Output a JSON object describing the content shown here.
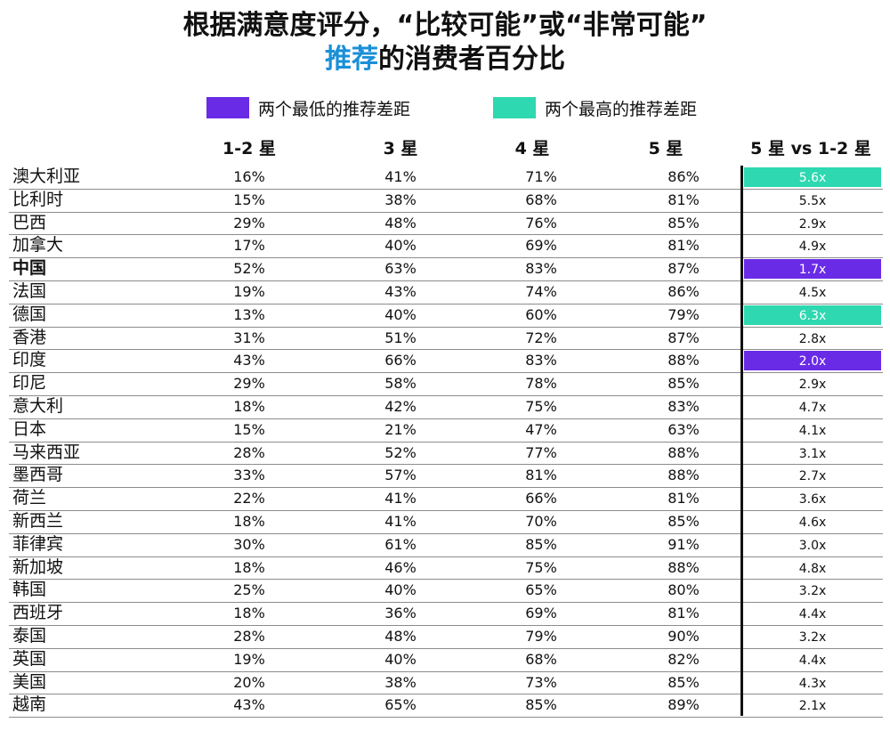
{
  "title_line1": "根据满意度评分，“比较可能”或“非常可能”",
  "title_line2_highlight": "推荐",
  "title_line2_rest": "的消费者百分比",
  "legend": {
    "low_label": "两个最低的推荐差距",
    "high_label": "两个最高的推荐差距",
    "low_color": "#6a2be6",
    "high_color": "#2ed8b0"
  },
  "headers": [
    "1-2 星",
    "3 星",
    "4  星",
    "5 星",
    "5 星 vs 1-2 星"
  ],
  "chart_data": {
    "type": "table",
    "columns": [
      "1-2 星",
      "3 星",
      "4  星",
      "5 星",
      "5 星 vs 1-2 星"
    ],
    "rows": [
      {
        "country": "澳大利亚",
        "values": [
          "16%",
          "41%",
          "71%",
          "86%"
        ],
        "ratio": "5.6x",
        "highlight": "high"
      },
      {
        "country": "比利时",
        "values": [
          "15%",
          "38%",
          "68%",
          "81%"
        ],
        "ratio": "5.5x",
        "highlight": ""
      },
      {
        "country": "巴西",
        "values": [
          "29%",
          "48%",
          "76%",
          "85%"
        ],
        "ratio": "2.9x",
        "highlight": ""
      },
      {
        "country": "加拿大",
        "values": [
          "17%",
          "40%",
          "69%",
          "81%"
        ],
        "ratio": "4.9x",
        "highlight": ""
      },
      {
        "country": "中国",
        "values": [
          "52%",
          "63%",
          "83%",
          "87%"
        ],
        "ratio": "1.7x",
        "highlight": "low",
        "bold": true
      },
      {
        "country": "法国",
        "values": [
          "19%",
          "43%",
          "74%",
          "86%"
        ],
        "ratio": "4.5x",
        "highlight": ""
      },
      {
        "country": "德国",
        "values": [
          "13%",
          "40%",
          "60%",
          "79%"
        ],
        "ratio": "6.3x",
        "highlight": "high"
      },
      {
        "country": "香港",
        "values": [
          "31%",
          "51%",
          "72%",
          "87%"
        ],
        "ratio": "2.8x",
        "highlight": ""
      },
      {
        "country": "印度",
        "values": [
          "43%",
          "66%",
          "83%",
          "88%"
        ],
        "ratio": "2.0x",
        "highlight": "low"
      },
      {
        "country": "印尼",
        "values": [
          "29%",
          "58%",
          "78%",
          "85%"
        ],
        "ratio": "2.9x",
        "highlight": ""
      },
      {
        "country": "意大利",
        "values": [
          "18%",
          "42%",
          "75%",
          "83%"
        ],
        "ratio": "4.7x",
        "highlight": ""
      },
      {
        "country": "日本",
        "values": [
          "15%",
          "21%",
          "47%",
          "63%"
        ],
        "ratio": "4.1x",
        "highlight": ""
      },
      {
        "country": "马来西亚",
        "values": [
          "28%",
          "52%",
          "77%",
          "88%"
        ],
        "ratio": "3.1x",
        "highlight": ""
      },
      {
        "country": "墨西哥",
        "values": [
          "33%",
          "57%",
          "81%",
          "88%"
        ],
        "ratio": "2.7x",
        "highlight": ""
      },
      {
        "country": "荷兰",
        "values": [
          "22%",
          "41%",
          "66%",
          "81%"
        ],
        "ratio": "3.6x",
        "highlight": ""
      },
      {
        "country": "新西兰",
        "values": [
          "18%",
          "41%",
          "70%",
          "85%"
        ],
        "ratio": "4.6x",
        "highlight": ""
      },
      {
        "country": "菲律宾",
        "values": [
          "30%",
          "61%",
          "85%",
          "91%"
        ],
        "ratio": "3.0x",
        "highlight": ""
      },
      {
        "country": "新加坡",
        "values": [
          "18%",
          "46%",
          "75%",
          "88%"
        ],
        "ratio": "4.8x",
        "highlight": ""
      },
      {
        "country": "韩国",
        "values": [
          "25%",
          "40%",
          "65%",
          "80%"
        ],
        "ratio": "3.2x",
        "highlight": ""
      },
      {
        "country": "西班牙",
        "values": [
          "18%",
          "36%",
          "69%",
          "81%"
        ],
        "ratio": "4.4x",
        "highlight": ""
      },
      {
        "country": "泰国",
        "values": [
          "28%",
          "48%",
          "79%",
          "90%"
        ],
        "ratio": "3.2x",
        "highlight": ""
      },
      {
        "country": "英国",
        "values": [
          "19%",
          "40%",
          "68%",
          "82%"
        ],
        "ratio": "4.4x",
        "highlight": ""
      },
      {
        "country": "美国",
        "values": [
          "20%",
          "38%",
          "73%",
          "85%"
        ],
        "ratio": "4.3x",
        "highlight": ""
      },
      {
        "country": "越南",
        "values": [
          "43%",
          "65%",
          "85%",
          "89%"
        ],
        "ratio": "2.1x",
        "highlight": ""
      }
    ]
  }
}
